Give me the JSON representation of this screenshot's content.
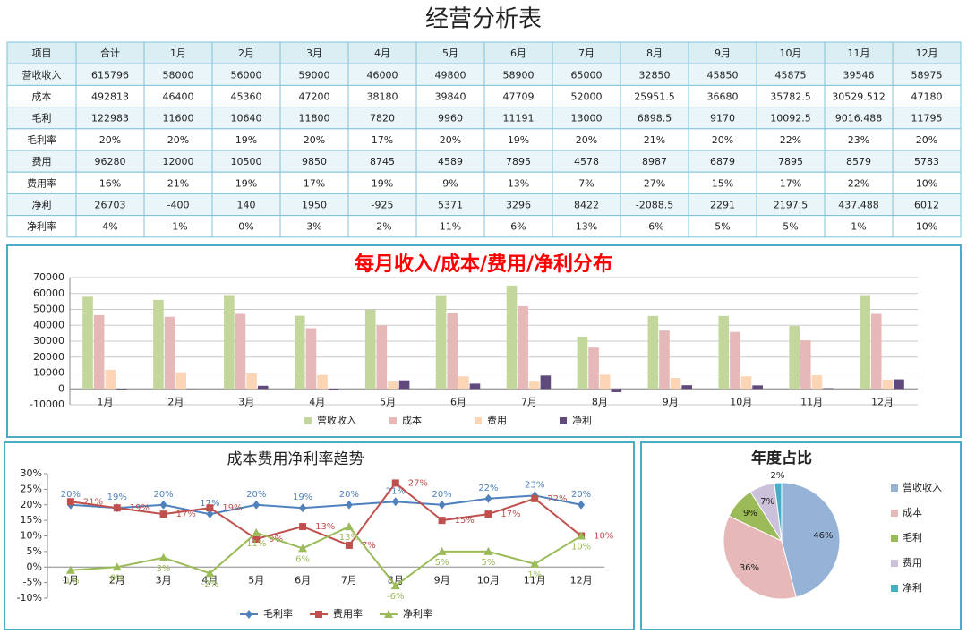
{
  "header": {
    "title": "经营分析表"
  },
  "table": {
    "header": [
      "项目",
      "合计",
      "1月",
      "2月",
      "3月",
      "4月",
      "5月",
      "6月",
      "7月",
      "8月",
      "9月",
      "10月",
      "11月",
      "12月"
    ],
    "rows": [
      [
        "营收收入",
        "615796",
        "58000",
        "56000",
        "59000",
        "46000",
        "49800",
        "58900",
        "65000",
        "32850",
        "45850",
        "45875",
        "39546",
        "58975"
      ],
      [
        "成本",
        "492813",
        "46400",
        "45360",
        "47200",
        "38180",
        "39840",
        "47709",
        "52000",
        "25951.5",
        "36680",
        "35782.5",
        "30529.512",
        "47180"
      ],
      [
        "毛利",
        "122983",
        "11600",
        "10640",
        "11800",
        "7820",
        "9960",
        "11191",
        "13000",
        "6898.5",
        "9170",
        "10092.5",
        "9016.488",
        "11795"
      ],
      [
        "毛利率",
        "20%",
        "20%",
        "19%",
        "20%",
        "17%",
        "20%",
        "19%",
        "20%",
        "21%",
        "20%",
        "22%",
        "23%",
        "20%"
      ],
      [
        "费用",
        "96280",
        "12000",
        "10500",
        "9850",
        "8745",
        "4589",
        "7895",
        "4578",
        "8987",
        "6879",
        "7895",
        "8579",
        "5783"
      ],
      [
        "费用率",
        "16%",
        "21%",
        "19%",
        "17%",
        "19%",
        "9%",
        "13%",
        "7%",
        "27%",
        "15%",
        "17%",
        "22%",
        "10%"
      ],
      [
        "净利",
        "26703",
        "-400",
        "140",
        "1950",
        "-925",
        "5371",
        "3296",
        "8422",
        "-2088.5",
        "2291",
        "2197.5",
        "437.488",
        "6012"
      ],
      [
        "净利率",
        "4%",
        "-1%",
        "0%",
        "3%",
        "-2%",
        "11%",
        "6%",
        "13%",
        "-6%",
        "5%",
        "5%",
        "1%",
        "10%"
      ]
    ]
  },
  "chart_data": [
    {
      "type": "bar",
      "title": "每月收入/成本/费用/净利分布",
      "categories": [
        "1月",
        "2月",
        "3月",
        "4月",
        "5月",
        "6月",
        "7月",
        "8月",
        "9月",
        "10月",
        "11月",
        "12月"
      ],
      "series": [
        {
          "name": "营收收入",
          "color": "#c3d69b",
          "values": [
            58000,
            56000,
            59000,
            46000,
            49800,
            58900,
            65000,
            32850,
            45850,
            45875,
            39546,
            58975
          ]
        },
        {
          "name": "成本",
          "color": "#e6b9b8",
          "values": [
            46400,
            45360,
            47200,
            38180,
            39840,
            47709,
            52000,
            25951.5,
            36680,
            35782.5,
            30529.512,
            47180
          ]
        },
        {
          "name": "费用",
          "color": "#fcd5b5",
          "values": [
            12000,
            10500,
            9850,
            8745,
            4589,
            7895,
            4578,
            8987,
            6879,
            7895,
            8579,
            5783
          ]
        },
        {
          "name": "净利",
          "color": "#604a7b",
          "values": [
            -400,
            140,
            1950,
            -925,
            5371,
            3296,
            8422,
            -2088.5,
            2291,
            2197.5,
            437.488,
            6012
          ]
        }
      ],
      "ylim": [
        -10000,
        70000
      ],
      "yticks": [
        -10000,
        0,
        10000,
        20000,
        30000,
        40000,
        50000,
        60000,
        70000
      ],
      "grid": true,
      "legend": "bottom"
    },
    {
      "type": "line",
      "title": "成本费用净利率趋势",
      "categories": [
        "1月",
        "2月",
        "3月",
        "4月",
        "5月",
        "6月",
        "7月",
        "8月",
        "9月",
        "10月",
        "11月",
        "12月"
      ],
      "series": [
        {
          "name": "毛利率",
          "color": "#4f81bd",
          "marker": "diamond",
          "values": [
            20,
            19,
            20,
            17,
            20,
            19,
            20,
            21,
            20,
            22,
            23,
            20
          ],
          "value_labels": [
            "20%",
            "19%",
            "20%",
            "17%",
            "20%",
            "19%",
            "20%",
            "21%",
            "20%",
            "22%",
            "23%",
            "20%"
          ]
        },
        {
          "name": "费用率",
          "color": "#c0504d",
          "marker": "square",
          "values": [
            21,
            19,
            17,
            19,
            9,
            13,
            7,
            27,
            15,
            17,
            22,
            10
          ],
          "value_labels": [
            "21%",
            "19%",
            "17%",
            "19%",
            "9%",
            "13%",
            "7%",
            "27%",
            "15%",
            "17%",
            "22%",
            "10%"
          ]
        },
        {
          "name": "净利率",
          "color": "#9bbb59",
          "marker": "triangle",
          "values": [
            -1,
            0,
            3,
            -2,
            11,
            6,
            13,
            -6,
            5,
            5,
            1,
            10
          ],
          "value_labels": [
            "-1%",
            "0%",
            "3%",
            "-2%",
            "11%",
            "6%",
            "13%",
            "-6%",
            "5%",
            "5%",
            "1%",
            "10%"
          ]
        }
      ],
      "ylim": [
        -10,
        30
      ],
      "yticks": [
        {
          "value": -10,
          "label": "-10%"
        },
        {
          "value": -5,
          "label": "-5%"
        },
        {
          "value": 0,
          "label": "0%"
        },
        {
          "value": 5,
          "label": "5%"
        },
        {
          "value": 10,
          "label": "10%"
        },
        {
          "value": 15,
          "label": "15%"
        },
        {
          "value": 20,
          "label": "20%"
        },
        {
          "value": 25,
          "label": "25%"
        },
        {
          "value": 30,
          "label": "30%"
        }
      ],
      "grid": false,
      "legend": "bottom"
    },
    {
      "type": "pie",
      "title": "年度占比",
      "categories": [
        "营收收入",
        "成本",
        "毛利",
        "费用",
        "净利"
      ],
      "values": [
        46,
        36,
        9,
        7,
        2
      ],
      "value_labels": [
        "46%",
        "36%",
        "9%",
        "7%",
        "2%"
      ],
      "colors": [
        "#95b3d7",
        "#e6b9b8",
        "#9bbb59",
        "#ccc1da",
        "#4bacc6"
      ],
      "legend": "right"
    }
  ]
}
